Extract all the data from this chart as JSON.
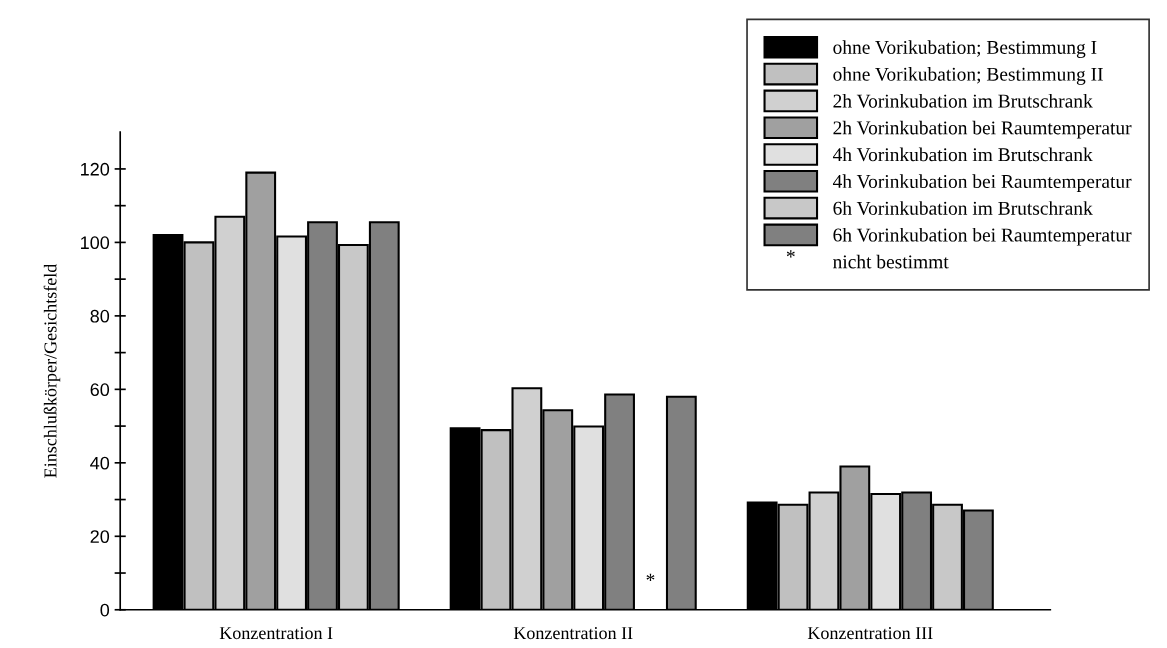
{
  "chart_data": {
    "type": "bar",
    "ylabel": "Einschlußkörper/Gesichtsfeld",
    "categories": [
      "Konzentration I",
      "Konzentration II",
      "Konzentration III"
    ],
    "series": [
      {
        "name": "ohne Vorikubation; Bestimmung I",
        "color": "#000000",
        "values": [
          102,
          49.4,
          29.2
        ]
      },
      {
        "name": "ohne Vorikubation; Bestimmung II",
        "color": "#c0c0c0",
        "values": [
          100,
          48.9,
          28.6
        ]
      },
      {
        "name": "2h Vorinkubation im Brutschrank",
        "color": "#d0d0d0",
        "values": [
          107,
          60.3,
          31.9
        ]
      },
      {
        "name": "2h Vorinkubation bei Raumtemperatur",
        "color": "#a0a0a0",
        "values": [
          119,
          54.3,
          39
        ]
      },
      {
        "name": "4h Vorinkubation im Brutschrank",
        "color": "#e0e0e0",
        "values": [
          101.6,
          49.9,
          31.5
        ]
      },
      {
        "name": "4h Vorinkubation bei Raumtemperatur",
        "color": "#808080",
        "values": [
          105.5,
          58.6,
          31.9
        ]
      },
      {
        "name": "6h Vorinkubation im Brutschrank",
        "color": "#c8c8c8",
        "values": [
          99.3,
          null,
          28.6
        ]
      },
      {
        "name": "6h Vorinkubation bei Raumtemperatur",
        "color": "#808080",
        "values": [
          105.5,
          58,
          27
        ]
      }
    ],
    "annotations": [
      "*",
      "nicht bestimmt"
    ],
    "ylim": [
      0,
      130
    ],
    "yticks": [
      0,
      {
        "value": 10,
        "label": null
      },
      20,
      {
        "value": 30,
        "label": null
      },
      40,
      {
        "value": 50,
        "label": null
      },
      60,
      {
        "value": 70,
        "label": null
      },
      80,
      {
        "value": 90,
        "label": null
      },
      100,
      {
        "value": 110,
        "label": null
      },
      120
    ],
    "legend": "top right",
    "grid": false
  }
}
